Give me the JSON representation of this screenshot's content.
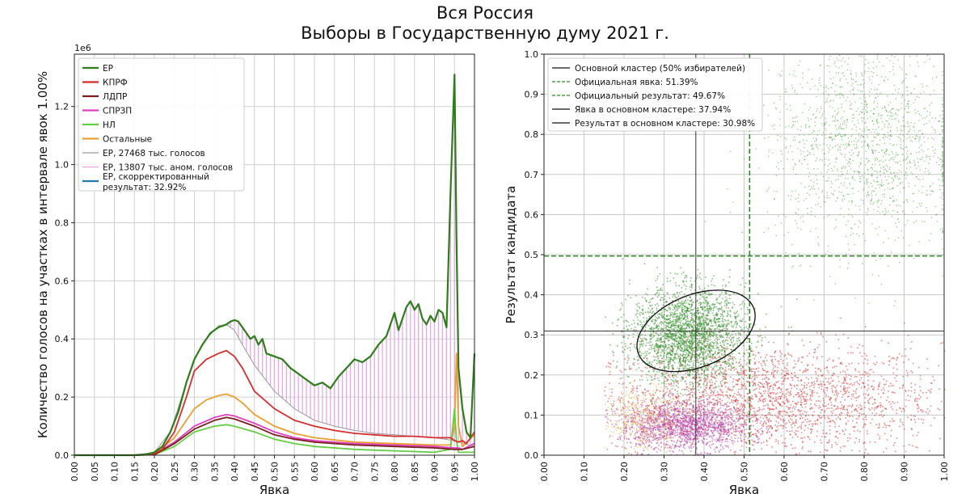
{
  "title": "Вся Россия",
  "subtitle": "Выборы в Государственную думу 2021 г.",
  "chart_data": [
    {
      "type": "line",
      "xlabel": "Явка",
      "ylabel": "Количество голосов на участках в интервале явок 1.00%",
      "y_offset_label": "1e6",
      "xlim": [
        0,
        1
      ],
      "ylim": [
        0,
        1.38
      ],
      "grid": true,
      "legend_position": "top-left",
      "x_ticks": [
        "0.00",
        "0.05",
        "0.10",
        "0.15",
        "0.20",
        "0.25",
        "0.30",
        "0.35",
        "0.40",
        "0.45",
        "0.50",
        "0.55",
        "0.60",
        "0.65",
        "0.70",
        "0.75",
        "0.80",
        "0.85",
        "0.90",
        "0.95",
        "1.00"
      ],
      "y_ticks": [
        "0.0",
        "0.2",
        "0.4",
        "0.6",
        "0.8",
        "1.0",
        "1.2"
      ],
      "series": [
        {
          "name": "ЕР",
          "color": "#2e7d1a",
          "x": [
            0,
            0.15,
            0.18,
            0.2,
            0.22,
            0.24,
            0.26,
            0.28,
            0.3,
            0.32,
            0.34,
            0.36,
            0.38,
            0.39,
            0.4,
            0.41,
            0.42,
            0.43,
            0.44,
            0.45,
            0.46,
            0.47,
            0.48,
            0.5,
            0.52,
            0.54,
            0.56,
            0.58,
            0.6,
            0.62,
            0.64,
            0.66,
            0.68,
            0.7,
            0.72,
            0.74,
            0.76,
            0.78,
            0.8,
            0.81,
            0.82,
            0.83,
            0.84,
            0.85,
            0.86,
            0.87,
            0.88,
            0.89,
            0.9,
            0.91,
            0.92,
            0.93,
            0.94,
            0.95,
            0.955,
            0.96,
            0.97,
            0.98,
            0.99,
            1.0
          ],
          "values": [
            0,
            0,
            0.003,
            0.01,
            0.03,
            0.08,
            0.15,
            0.25,
            0.33,
            0.38,
            0.42,
            0.44,
            0.45,
            0.46,
            0.465,
            0.46,
            0.44,
            0.42,
            0.4,
            0.41,
            0.38,
            0.4,
            0.35,
            0.34,
            0.33,
            0.3,
            0.28,
            0.26,
            0.24,
            0.25,
            0.23,
            0.27,
            0.3,
            0.33,
            0.32,
            0.34,
            0.38,
            0.41,
            0.49,
            0.43,
            0.47,
            0.51,
            0.53,
            0.5,
            0.52,
            0.47,
            0.45,
            0.48,
            0.46,
            0.5,
            0.49,
            0.44,
            0.9,
            1.31,
            0.75,
            0.3,
            0.16,
            0.08,
            0.06,
            0.35
          ]
        },
        {
          "name": "КПРФ",
          "color": "#d32f2f",
          "x": [
            0,
            0.15,
            0.2,
            0.22,
            0.25,
            0.28,
            0.3,
            0.33,
            0.36,
            0.38,
            0.4,
            0.42,
            0.45,
            0.5,
            0.55,
            0.6,
            0.65,
            0.7,
            0.75,
            0.8,
            0.85,
            0.9,
            0.94,
            0.95,
            0.96,
            0.97,
            0.98,
            1.0
          ],
          "values": [
            0,
            0,
            0.005,
            0.02,
            0.08,
            0.2,
            0.29,
            0.33,
            0.35,
            0.36,
            0.34,
            0.3,
            0.22,
            0.16,
            0.12,
            0.1,
            0.085,
            0.075,
            0.07,
            0.065,
            0.065,
            0.06,
            0.06,
            0.05,
            0.045,
            0.05,
            0.04,
            0.08
          ]
        },
        {
          "name": "ЛДПР",
          "color": "#7a1f1f",
          "x": [
            0,
            0.15,
            0.2,
            0.25,
            0.3,
            0.35,
            0.38,
            0.4,
            0.45,
            0.5,
            0.55,
            0.6,
            0.7,
            0.8,
            0.9,
            0.95,
            0.96,
            0.97,
            1.0
          ],
          "values": [
            0,
            0,
            0.002,
            0.04,
            0.09,
            0.12,
            0.13,
            0.125,
            0.1,
            0.07,
            0.055,
            0.045,
            0.035,
            0.03,
            0.025,
            0.02,
            0.02,
            0.02,
            0.03
          ]
        },
        {
          "name": "СПРЗП",
          "color": "#e040c0",
          "x": [
            0,
            0.15,
            0.2,
            0.25,
            0.3,
            0.35,
            0.38,
            0.4,
            0.45,
            0.5,
            0.55,
            0.6,
            0.7,
            0.8,
            0.9,
            0.95,
            0.96,
            0.97,
            1.0
          ],
          "values": [
            0,
            0,
            0.003,
            0.045,
            0.1,
            0.13,
            0.14,
            0.135,
            0.11,
            0.08,
            0.06,
            0.05,
            0.04,
            0.035,
            0.03,
            0.025,
            0.025,
            0.02,
            0.04
          ]
        },
        {
          "name": "НЛ",
          "color": "#66cc44",
          "x": [
            0,
            0.15,
            0.2,
            0.25,
            0.3,
            0.35,
            0.38,
            0.4,
            0.45,
            0.5,
            0.55,
            0.6,
            0.7,
            0.8,
            0.9,
            0.94,
            0.95,
            0.955,
            0.96,
            0.97,
            1.0
          ],
          "values": [
            0,
            0,
            0.002,
            0.03,
            0.08,
            0.1,
            0.105,
            0.1,
            0.08,
            0.055,
            0.04,
            0.03,
            0.02,
            0.015,
            0.01,
            0.02,
            0.16,
            0.05,
            0.01,
            0.01,
            0.01
          ]
        },
        {
          "name": "Остальные",
          "color": "#e8a030",
          "x": [
            0,
            0.15,
            0.2,
            0.25,
            0.28,
            0.3,
            0.33,
            0.36,
            0.38,
            0.4,
            0.42,
            0.45,
            0.5,
            0.55,
            0.6,
            0.7,
            0.8,
            0.9,
            0.94,
            0.95,
            0.955,
            0.96,
            0.97,
            1.0
          ],
          "values": [
            0,
            0,
            0.004,
            0.06,
            0.12,
            0.16,
            0.19,
            0.205,
            0.21,
            0.2,
            0.18,
            0.14,
            0.1,
            0.075,
            0.06,
            0.045,
            0.04,
            0.035,
            0.035,
            0.1,
            0.35,
            0.1,
            0.03,
            0.07
          ]
        },
        {
          "name": "ЕР, 27468 тыс. голосов",
          "color": "#999999",
          "x": [
            0,
            0.15,
            0.2,
            0.24,
            0.28,
            0.3,
            0.33,
            0.36,
            0.38,
            0.4,
            0.42,
            0.45,
            0.5,
            0.55,
            0.6,
            0.65,
            0.7,
            0.75,
            0.8,
            0.85,
            0.9,
            0.95,
            1.0
          ],
          "values": [
            0,
            0,
            0.01,
            0.08,
            0.25,
            0.33,
            0.4,
            0.445,
            0.45,
            0.43,
            0.38,
            0.31,
            0.22,
            0.16,
            0.12,
            0.1,
            0.085,
            0.075,
            0.07,
            0.065,
            0.06,
            0.05,
            0.03
          ]
        },
        {
          "name": "ЕР, 13807 тыс. аном. голосов",
          "color": "#e5a8e5"
        },
        {
          "name": "ЕР, скорректированный результат: 32.92%",
          "color": "#1f77b4"
        }
      ]
    },
    {
      "type": "scatter",
      "xlabel": "Явка",
      "ylabel": "Результат кандидата",
      "xlim": [
        0,
        1
      ],
      "ylim": [
        0,
        1
      ],
      "grid": true,
      "legend_position": "top-left",
      "x_ticks": [
        "0.00",
        "0.10",
        "0.20",
        "0.30",
        "0.40",
        "0.50",
        "0.60",
        "0.70",
        "0.80",
        "0.90",
        "1.00"
      ],
      "y_ticks": [
        "0.0",
        "0.1",
        "0.2",
        "0.3",
        "0.4",
        "0.5",
        "0.6",
        "0.7",
        "0.8",
        "0.9",
        "1.0"
      ],
      "clusters": [
        {
          "party": "КПРФ",
          "color": "#d32f2f",
          "center": [
            0.55,
            0.14
          ],
          "spread": [
            0.22,
            0.07
          ]
        },
        {
          "party": "СПРЗП",
          "color": "#b03aa8",
          "center": [
            0.35,
            0.075
          ],
          "spread": [
            0.08,
            0.03
          ]
        },
        {
          "party": "ЕР",
          "color": "#2e8b22",
          "center": [
            0.36,
            0.3
          ],
          "spread": [
            0.07,
            0.06
          ]
        },
        {
          "party": "ЕР",
          "color": "#3a9a2a",
          "center": [
            0.8,
            0.78
          ],
          "spread": [
            0.12,
            0.13
          ]
        },
        {
          "party": "Остальные",
          "color": "#e8a030",
          "center": [
            0.25,
            0.09
          ],
          "spread": [
            0.05,
            0.04
          ]
        }
      ],
      "ellipse": {
        "center": [
          0.38,
          0.31
        ],
        "semi_axes": [
          0.155,
          0.09
        ],
        "rotation_deg": 22
      },
      "lines": [
        {
          "orientation": "vertical",
          "value": 0.5139,
          "color": "#2e8b22",
          "style": "dashed"
        },
        {
          "orientation": "horizontal",
          "value": 0.4967,
          "color": "#2e8b22",
          "style": "dashed"
        },
        {
          "orientation": "vertical",
          "value": 0.3794,
          "color": "#333333",
          "style": "solid"
        },
        {
          "orientation": "horizontal",
          "value": 0.3098,
          "color": "#333333",
          "style": "solid"
        }
      ],
      "legend": [
        {
          "label": "Основной кластер (50% избирателей)",
          "color": "#111111",
          "style": "solid"
        },
        {
          "label": "Официальная явка: 51.39%",
          "color": "#2e8b22",
          "style": "dashed"
        },
        {
          "label": "Официальный результат: 49.67%",
          "color": "#2e8b22",
          "style": "dashed"
        },
        {
          "label": "Явка в основном кластере: 37.94%",
          "color": "#111111",
          "style": "solid"
        },
        {
          "label": "Результат в основном кластере: 30.98%",
          "color": "#111111",
          "style": "solid"
        }
      ]
    }
  ]
}
